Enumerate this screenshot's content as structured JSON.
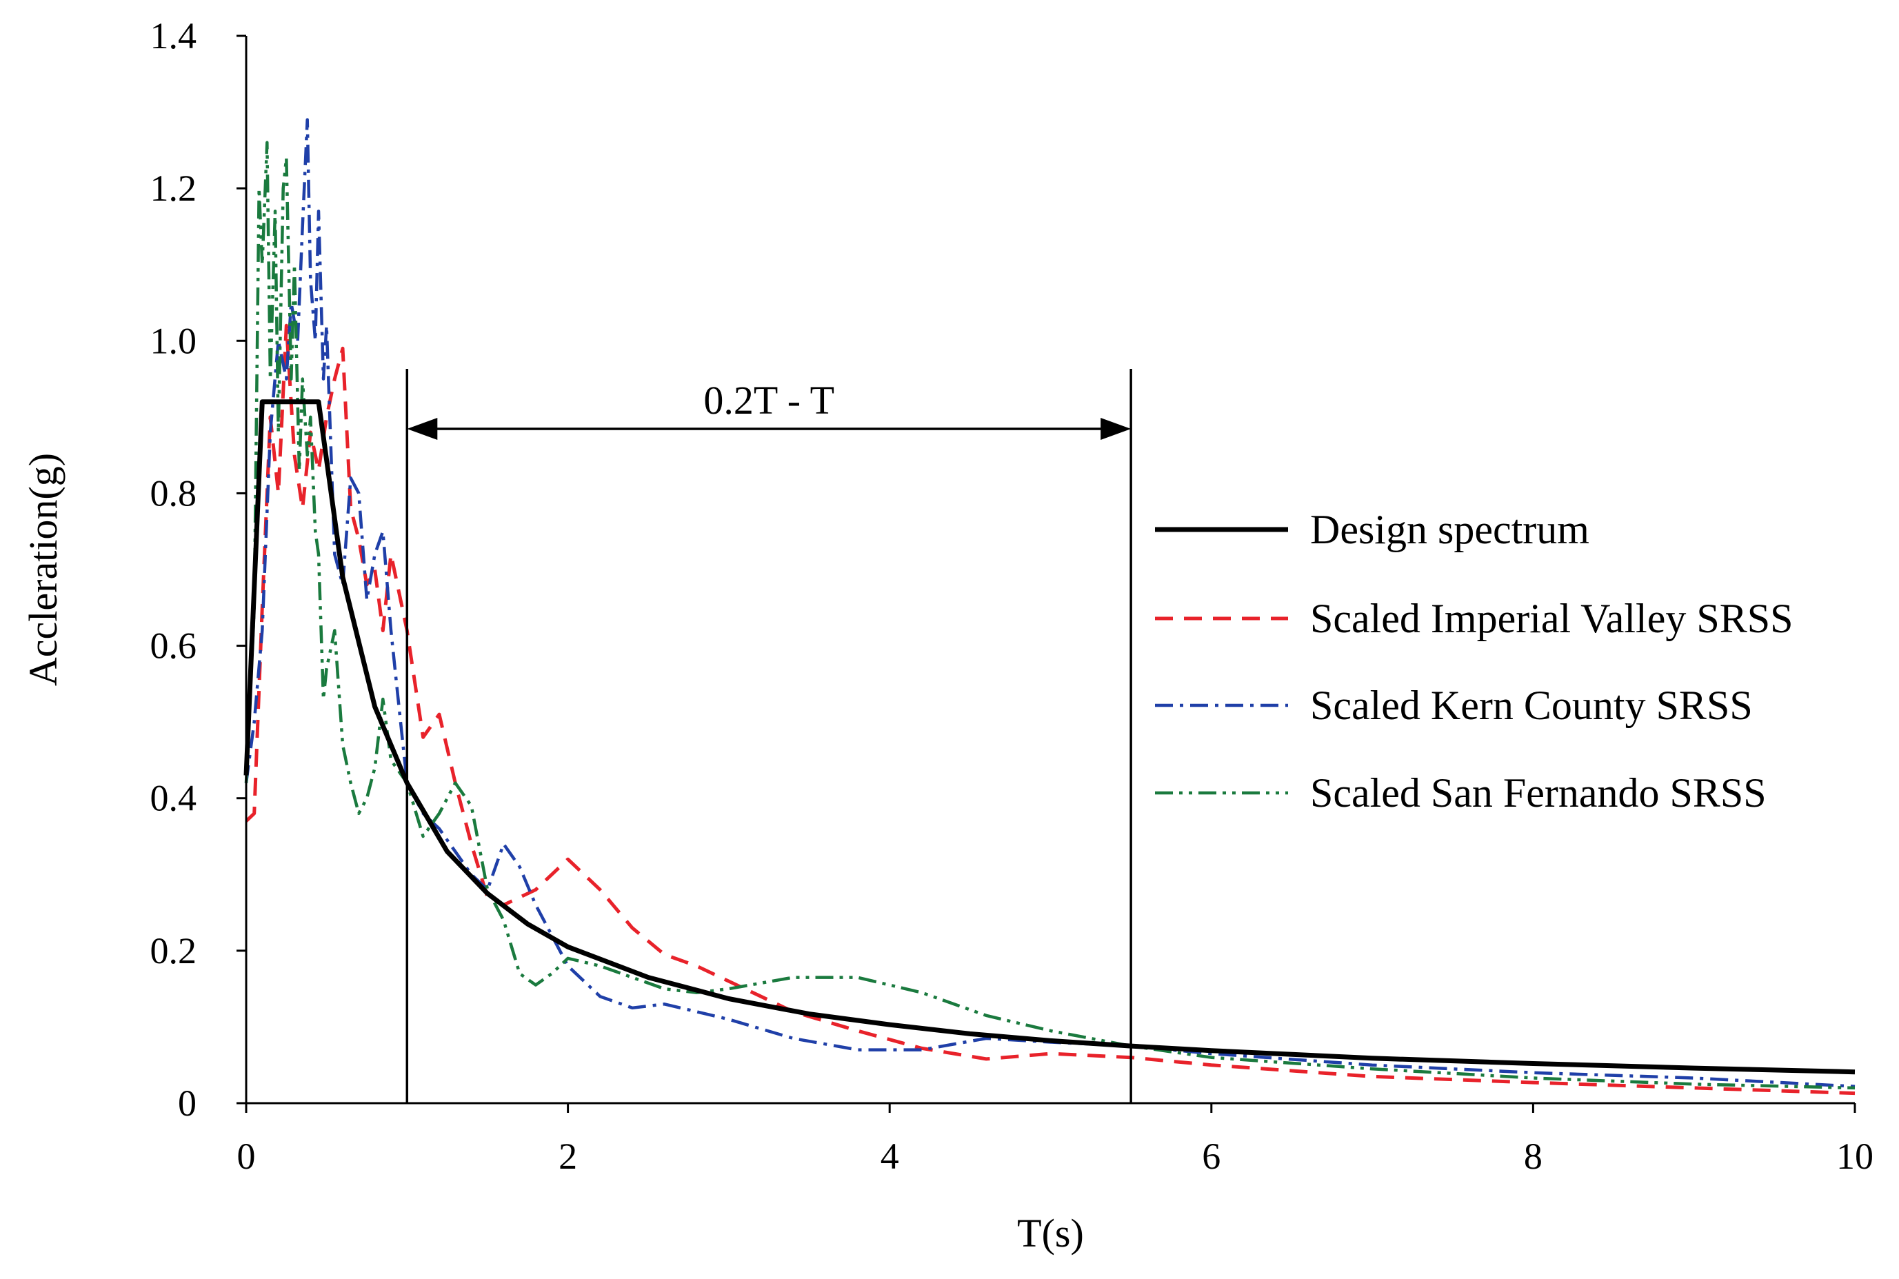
{
  "chart_data": {
    "type": "line",
    "title": "",
    "xlabel": "T(s)",
    "ylabel": "Accleration(g)",
    "xlim": [
      0,
      10
    ],
    "ylim": [
      0,
      1.4
    ],
    "x_ticks": [
      0,
      2,
      4,
      6,
      8,
      10
    ],
    "y_ticks": [
      0,
      0.2,
      0.4,
      0.6,
      0.8,
      1.0,
      1.2,
      1.4
    ],
    "x_tick_labels": [
      "0",
      "2",
      "4",
      "6",
      "8",
      "10"
    ],
    "y_tick_labels": [
      "0",
      "0.2",
      "0.4",
      "0.6",
      "0.8",
      "1.0",
      "1.2",
      "1.4"
    ],
    "grid": false,
    "legend_position": "right",
    "annotation": {
      "label": "0.2T - T",
      "x_start": 1.0,
      "x_end": 5.5
    },
    "series": [
      {
        "name": "Design spectrum",
        "color": "#000000",
        "dash": "solid",
        "x": [
          0,
          0.1,
          0.45,
          0.6,
          0.8,
          1.0,
          1.25,
          1.5,
          1.75,
          2.0,
          2.5,
          3.0,
          3.5,
          4.0,
          4.5,
          5.0,
          5.5,
          6.0,
          7.0,
          8.0,
          9.0,
          10.0
        ],
        "y": [
          0.43,
          0.92,
          0.92,
          0.69,
          0.52,
          0.42,
          0.33,
          0.275,
          0.235,
          0.205,
          0.165,
          0.137,
          0.117,
          0.103,
          0.091,
          0.082,
          0.075,
          0.069,
          0.059,
          0.052,
          0.046,
          0.041
        ]
      },
      {
        "name": "Scaled Imperial Valley SRSS",
        "color": "#e8222a",
        "dash": "dashed",
        "x": [
          0,
          0.05,
          0.1,
          0.15,
          0.2,
          0.25,
          0.3,
          0.35,
          0.4,
          0.45,
          0.5,
          0.55,
          0.6,
          0.65,
          0.7,
          0.75,
          0.8,
          0.85,
          0.9,
          1.0,
          1.1,
          1.2,
          1.3,
          1.4,
          1.5,
          1.6,
          1.7,
          1.8,
          2.0,
          2.2,
          2.4,
          2.6,
          2.8,
          3.0,
          3.4,
          3.8,
          4.2,
          4.6,
          5.0,
          5.5,
          6.0,
          7.0,
          8.0,
          9.0,
          10.0
        ],
        "y": [
          0.37,
          0.38,
          0.65,
          0.9,
          0.8,
          1.02,
          0.85,
          0.78,
          0.88,
          0.83,
          0.9,
          0.95,
          0.99,
          0.78,
          0.74,
          0.68,
          0.7,
          0.62,
          0.72,
          0.62,
          0.48,
          0.51,
          0.42,
          0.34,
          0.27,
          0.26,
          0.27,
          0.28,
          0.32,
          0.28,
          0.23,
          0.195,
          0.18,
          0.16,
          0.12,
          0.095,
          0.072,
          0.058,
          0.065,
          0.06,
          0.05,
          0.035,
          0.027,
          0.02,
          0.013
        ]
      },
      {
        "name": "Scaled Kern County SRSS",
        "color": "#1f3fa8",
        "dash": "dashdot",
        "x": [
          0,
          0.05,
          0.1,
          0.15,
          0.2,
          0.25,
          0.28,
          0.32,
          0.35,
          0.38,
          0.4,
          0.43,
          0.45,
          0.48,
          0.5,
          0.55,
          0.6,
          0.65,
          0.7,
          0.75,
          0.8,
          0.85,
          0.9,
          0.95,
          1.0,
          1.1,
          1.2,
          1.3,
          1.4,
          1.5,
          1.6,
          1.7,
          1.8,
          1.9,
          2.0,
          2.2,
          2.4,
          2.6,
          2.8,
          3.0,
          3.4,
          3.8,
          4.2,
          4.6,
          5.0,
          5.5,
          6.0,
          7.0,
          8.0,
          9.0,
          10.0
        ],
        "y": [
          0.42,
          0.5,
          0.62,
          0.88,
          1.0,
          0.95,
          1.05,
          1.0,
          1.15,
          1.29,
          1.08,
          1.0,
          1.17,
          0.95,
          1.02,
          0.72,
          0.68,
          0.82,
          0.8,
          0.66,
          0.72,
          0.75,
          0.62,
          0.52,
          0.42,
          0.38,
          0.36,
          0.33,
          0.3,
          0.28,
          0.34,
          0.31,
          0.26,
          0.22,
          0.18,
          0.14,
          0.125,
          0.13,
          0.12,
          0.11,
          0.085,
          0.07,
          0.07,
          0.085,
          0.08,
          0.075,
          0.065,
          0.05,
          0.04,
          0.033,
          0.022
        ]
      },
      {
        "name": "Scaled San Fernando SRSS",
        "color": "#1a7a3e",
        "dash": "dashdotdot",
        "x": [
          0,
          0.05,
          0.08,
          0.1,
          0.13,
          0.15,
          0.18,
          0.2,
          0.23,
          0.25,
          0.28,
          0.3,
          0.33,
          0.35,
          0.38,
          0.4,
          0.43,
          0.45,
          0.48,
          0.5,
          0.55,
          0.6,
          0.65,
          0.7,
          0.75,
          0.8,
          0.85,
          0.9,
          1.0,
          1.1,
          1.2,
          1.3,
          1.4,
          1.5,
          1.6,
          1.7,
          1.8,
          1.9,
          2.0,
          2.2,
          2.4,
          2.6,
          2.8,
          3.0,
          3.4,
          3.8,
          4.2,
          4.6,
          5.0,
          5.5,
          6.0,
          7.0,
          8.0,
          9.0,
          10.0
        ],
        "y": [
          0.42,
          0.65,
          1.2,
          1.1,
          1.26,
          0.95,
          1.17,
          0.88,
          1.2,
          1.24,
          0.95,
          1.1,
          0.83,
          0.95,
          0.85,
          0.9,
          0.75,
          0.72,
          0.53,
          0.57,
          0.62,
          0.47,
          0.42,
          0.38,
          0.4,
          0.44,
          0.53,
          0.45,
          0.42,
          0.35,
          0.38,
          0.42,
          0.39,
          0.28,
          0.24,
          0.17,
          0.155,
          0.17,
          0.19,
          0.18,
          0.165,
          0.15,
          0.145,
          0.15,
          0.165,
          0.165,
          0.145,
          0.115,
          0.095,
          0.075,
          0.06,
          0.045,
          0.033,
          0.025,
          0.02
        ]
      }
    ]
  }
}
